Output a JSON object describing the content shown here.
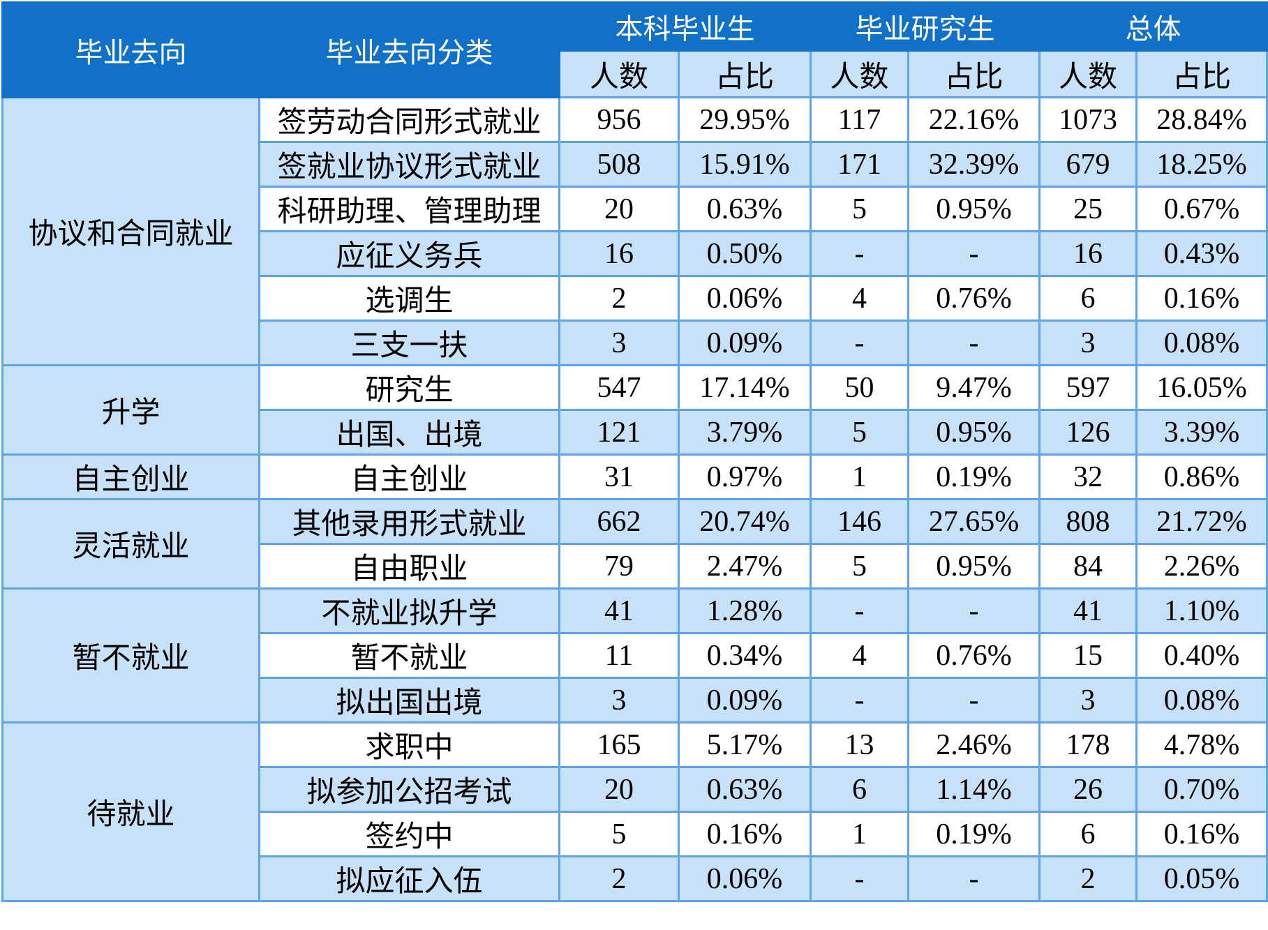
{
  "colors": {
    "header_bg": "#1170c8",
    "header_text": "#ffffff",
    "light_row": "#c7e1f8",
    "white_row": "#ffffff",
    "border": "#5ea5e8"
  },
  "header": {
    "col_destination": "毕业去向",
    "col_category": "毕业去向分类",
    "groups": [
      {
        "label": "本科毕业生",
        "count": "人数",
        "ratio": "占比"
      },
      {
        "label": "毕业研究生",
        "count": "人数",
        "ratio": "占比"
      },
      {
        "label": "总体",
        "count": "人数",
        "ratio": "占比"
      }
    ]
  },
  "groups": [
    {
      "name": "协议和合同就业",
      "rows": [
        {
          "category": "签劳动合同形式就业",
          "ug_n": "956",
          "ug_p": "29.95%",
          "pg_n": "117",
          "pg_p": "22.16%",
          "all_n": "1073",
          "all_p": "28.84%"
        },
        {
          "category": "签就业协议形式就业",
          "ug_n": "508",
          "ug_p": "15.91%",
          "pg_n": "171",
          "pg_p": "32.39%",
          "all_n": "679",
          "all_p": "18.25%"
        },
        {
          "category": "科研助理、管理助理",
          "ug_n": "20",
          "ug_p": "0.63%",
          "pg_n": "5",
          "pg_p": "0.95%",
          "all_n": "25",
          "all_p": "0.67%"
        },
        {
          "category": "应征义务兵",
          "ug_n": "16",
          "ug_p": "0.50%",
          "pg_n": "-",
          "pg_p": "-",
          "all_n": "16",
          "all_p": "0.43%"
        },
        {
          "category": "选调生",
          "ug_n": "2",
          "ug_p": "0.06%",
          "pg_n": "4",
          "pg_p": "0.76%",
          "all_n": "6",
          "all_p": "0.16%"
        },
        {
          "category": "三支一扶",
          "ug_n": "3",
          "ug_p": "0.09%",
          "pg_n": "-",
          "pg_p": "-",
          "all_n": "3",
          "all_p": "0.08%"
        }
      ]
    },
    {
      "name": "升学",
      "rows": [
        {
          "category": "研究生",
          "ug_n": "547",
          "ug_p": "17.14%",
          "pg_n": "50",
          "pg_p": "9.47%",
          "all_n": "597",
          "all_p": "16.05%"
        },
        {
          "category": "出国、出境",
          "ug_n": "121",
          "ug_p": "3.79%",
          "pg_n": "5",
          "pg_p": "0.95%",
          "all_n": "126",
          "all_p": "3.39%"
        }
      ]
    },
    {
      "name": "自主创业",
      "rows": [
        {
          "category": "自主创业",
          "ug_n": "31",
          "ug_p": "0.97%",
          "pg_n": "1",
          "pg_p": "0.19%",
          "all_n": "32",
          "all_p": "0.86%"
        }
      ]
    },
    {
      "name": "灵活就业",
      "rows": [
        {
          "category": "其他录用形式就业",
          "ug_n": "662",
          "ug_p": "20.74%",
          "pg_n": "146",
          "pg_p": "27.65%",
          "all_n": "808",
          "all_p": "21.72%"
        },
        {
          "category": "自由职业",
          "ug_n": "79",
          "ug_p": "2.47%",
          "pg_n": "5",
          "pg_p": "0.95%",
          "all_n": "84",
          "all_p": "2.26%"
        }
      ]
    },
    {
      "name": "暂不就业",
      "rows": [
        {
          "category": "不就业拟升学",
          "ug_n": "41",
          "ug_p": "1.28%",
          "pg_n": "-",
          "pg_p": "-",
          "all_n": "41",
          "all_p": "1.10%"
        },
        {
          "category": "暂不就业",
          "ug_n": "11",
          "ug_p": "0.34%",
          "pg_n": "4",
          "pg_p": "0.76%",
          "all_n": "15",
          "all_p": "0.40%"
        },
        {
          "category": "拟出国出境",
          "ug_n": "3",
          "ug_p": "0.09%",
          "pg_n": "-",
          "pg_p": "-",
          "all_n": "3",
          "all_p": "0.08%"
        }
      ]
    },
    {
      "name": "待就业",
      "rows": [
        {
          "category": "求职中",
          "ug_n": "165",
          "ug_p": "5.17%",
          "pg_n": "13",
          "pg_p": "2.46%",
          "all_n": "178",
          "all_p": "4.78%"
        },
        {
          "category": "拟参加公招考试",
          "ug_n": "20",
          "ug_p": "0.63%",
          "pg_n": "6",
          "pg_p": "1.14%",
          "all_n": "26",
          "all_p": "0.70%"
        },
        {
          "category": "签约中",
          "ug_n": "5",
          "ug_p": "0.16%",
          "pg_n": "1",
          "pg_p": "0.19%",
          "all_n": "6",
          "all_p": "0.16%"
        },
        {
          "category": "拟应征入伍",
          "ug_n": "2",
          "ug_p": "0.06%",
          "pg_n": "-",
          "pg_p": "-",
          "all_n": "2",
          "all_p": "0.05%"
        }
      ]
    }
  ]
}
